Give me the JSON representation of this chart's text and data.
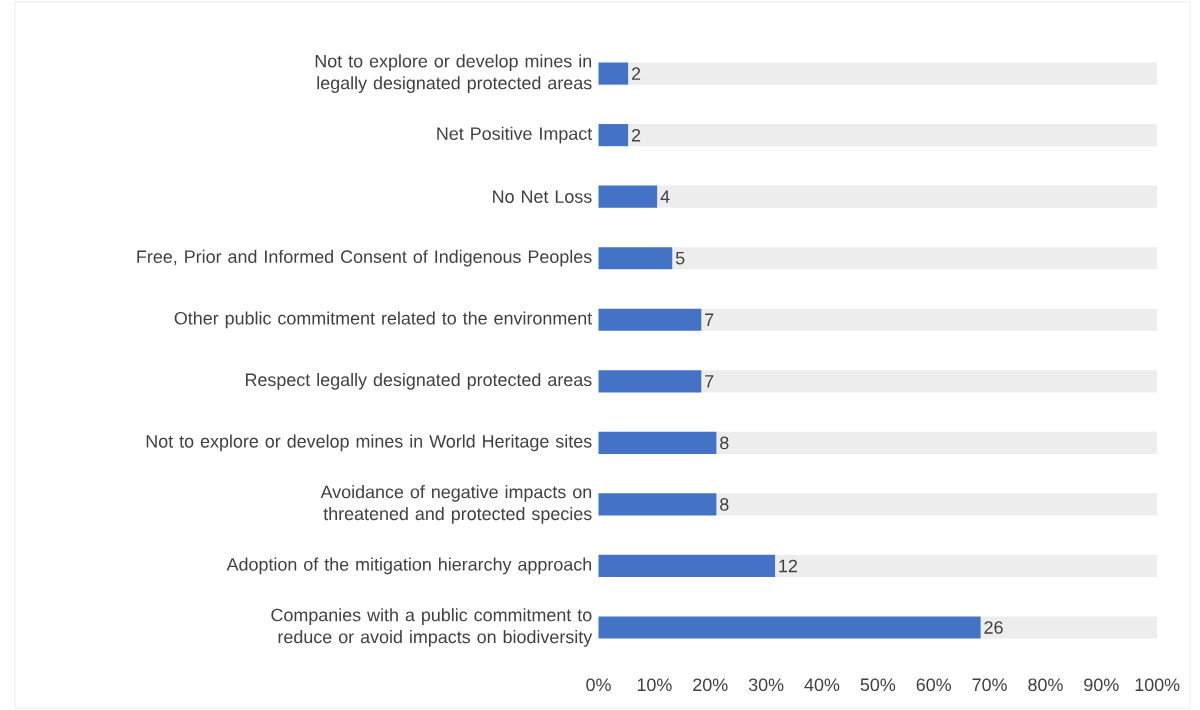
{
  "chart_data": {
    "type": "bar",
    "orientation": "horizontal",
    "stacked": true,
    "categories": [
      "Not to explore or develop mines in legally designated protected areas",
      "Net Positive Impact",
      "No Net Loss",
      "Free, Prior and Informed Consent of Indigenous Peoples",
      "Other public commitment related to the environment",
      "Respect legally designated protected areas",
      "Not to explore or develop mines in World Heritage sites",
      "Avoidance of negative impacts on threatened and protected species",
      "Adoption of the mitigation hierarchy approach",
      "Companies with a public commitment to reduce or avoid impacts on biodiversity"
    ],
    "series": [
      {
        "color": "#4472c4",
        "values": [
          5.3,
          5.3,
          10.5,
          13.2,
          18.4,
          18.4,
          21.1,
          21.1,
          31.6,
          68.4
        ]
      },
      {
        "color": "#ededed",
        "values": [
          94.7,
          94.7,
          89.5,
          86.8,
          81.6,
          81.6,
          78.9,
          78.9,
          68.4,
          31.6
        ]
      }
    ],
    "annotations": [
      "2",
      "2",
      "4",
      "5",
      "7",
      "7",
      "8",
      "8",
      "12",
      "26"
    ],
    "xlim": [
      0,
      100
    ],
    "xticks": [
      {
        "value": 0,
        "label": "0%"
      },
      {
        "value": 10,
        "label": "10%"
      },
      {
        "value": 20,
        "label": "20%"
      },
      {
        "value": 30,
        "label": "30%"
      },
      {
        "value": 40,
        "label": "40%"
      },
      {
        "value": 50,
        "label": "50%"
      },
      {
        "value": 60,
        "label": "60%"
      },
      {
        "value": 70,
        "label": "70%"
      },
      {
        "value": 80,
        "label": "80%"
      },
      {
        "value": 90,
        "label": "90%"
      },
      {
        "value": 100,
        "label": "100%"
      }
    ]
  }
}
